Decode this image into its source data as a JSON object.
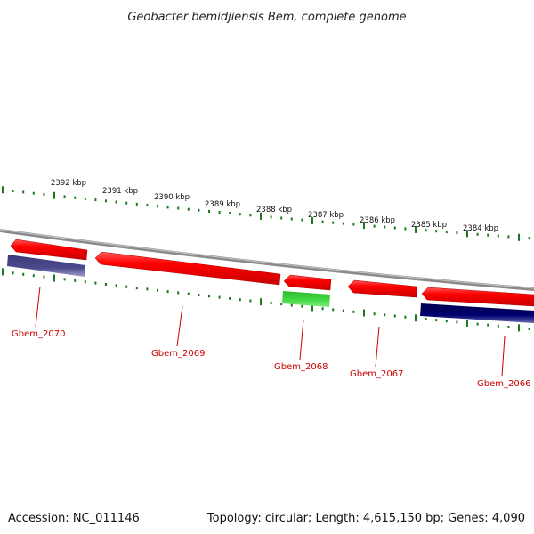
{
  "title": "Geobacter bemidjiensis Bem, complete genome",
  "footer": {
    "accession": "Accession: NC_011146",
    "summary": "Topology: circular; Length: 4,615,150 bp; Genes: 4,090"
  },
  "colors": {
    "backbone": "#808080",
    "tick": "#1a7a1a",
    "forward_gene": "#e60000",
    "forward_gene_alt": "#ff0000",
    "reverse_gene_dark": "#00006e",
    "reverse_gene_light": "#4a4a8c",
    "rna_gene": "#33cc33",
    "label": "#cc0000"
  },
  "scale_labels": [
    "2392 kbp",
    "2391 kbp",
    "2390 kbp",
    "2389 kbp",
    "2388 kbp",
    "2387 kbp",
    "2386 kbp",
    "2385 kbp",
    "2384 kbp"
  ],
  "genes": [
    {
      "label": "Gbem_2070",
      "strand": "reverse",
      "color": "#4a4a8c"
    },
    {
      "label": "Gbem_2069",
      "strand": "forward",
      "color": "#e60000"
    },
    {
      "label": "Gbem_2068",
      "strand": "reverse",
      "color": "#33cc33"
    },
    {
      "label": "Gbem_2067",
      "strand": "forward",
      "color": "#e60000"
    },
    {
      "label": "Gbem_2066",
      "strand": "reverse",
      "color": "#00006e"
    }
  ]
}
